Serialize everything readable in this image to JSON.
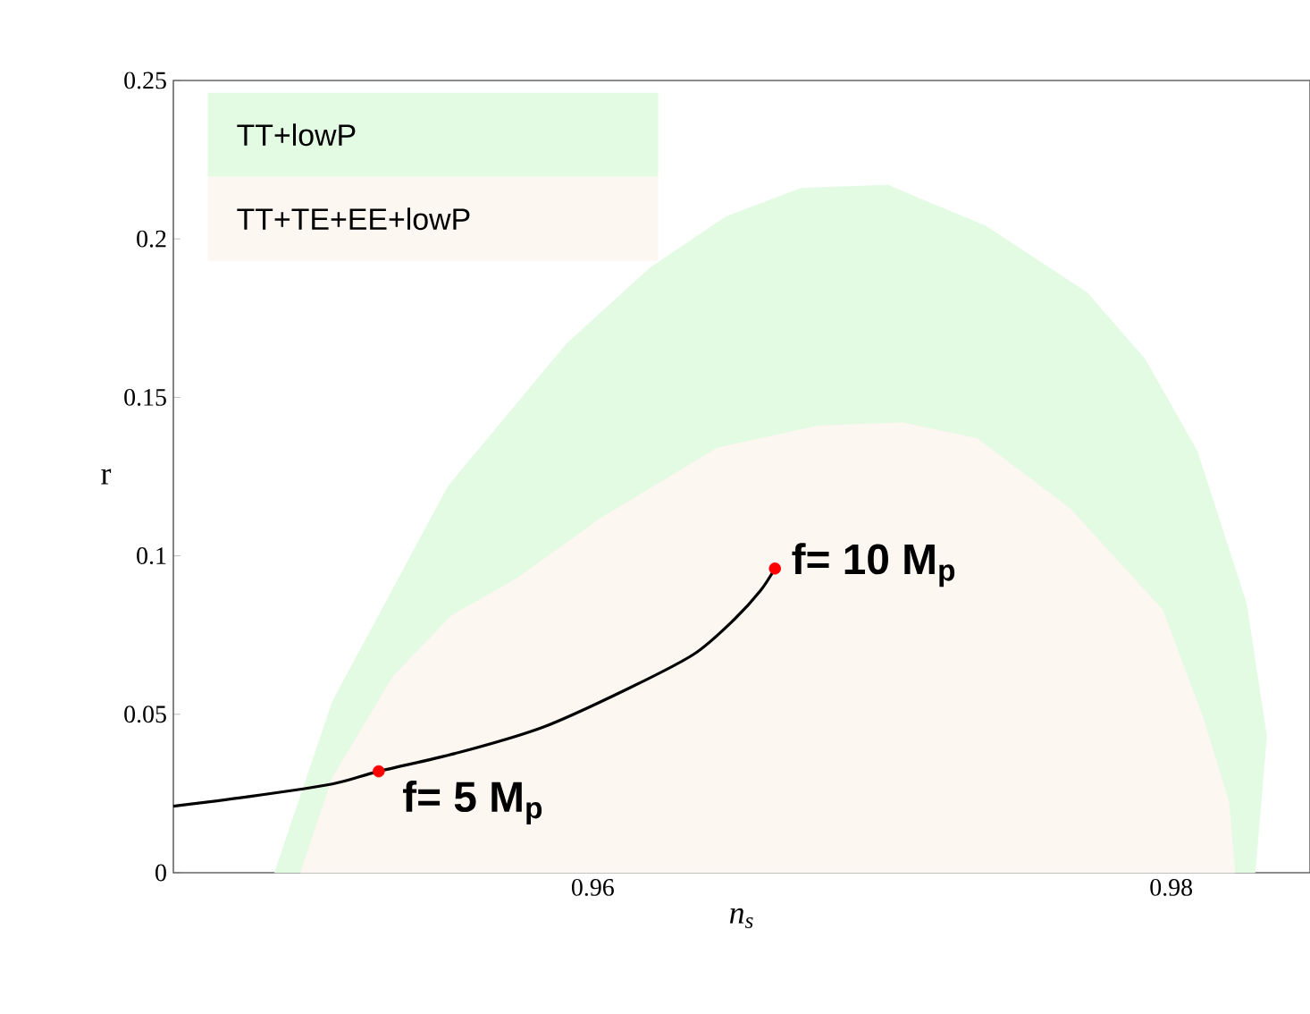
{
  "chart_data": {
    "type": "area",
    "xlabel": "n$_{s}$",
    "ylabel": "r",
    "xlim": [
      0.9455,
      0.9848
    ],
    "ylim": [
      0,
      0.25
    ],
    "xticks": [
      0.96,
      0.98
    ],
    "yticks": [
      0,
      0.05,
      0.1,
      0.15,
      0.2,
      0.25
    ],
    "legend": "top left",
    "series": [
      {
        "name": "TT+lowP",
        "color": "#e3fae3",
        "x": [
          0.949,
          0.951,
          0.955,
          0.9591,
          0.962,
          0.9646,
          0.9672,
          0.9702,
          0.9736,
          0.9771,
          0.9791,
          0.9809,
          0.9826,
          0.9833,
          0.9829
        ],
        "values": [
          0,
          0.054,
          0.122,
          0.167,
          0.191,
          0.207,
          0.216,
          0.217,
          0.204,
          0.183,
          0.162,
          0.133,
          0.085,
          0.043,
          0
        ]
      },
      {
        "name": "TT+TE+EE+lowP",
        "color": "#fdf7f2",
        "x": [
          0.9499,
          0.951,
          0.9531,
          0.9551,
          0.9574,
          0.9603,
          0.9643,
          0.9678,
          0.9707,
          0.9733,
          0.9765,
          0.9797,
          0.9811,
          0.982,
          0.9822
        ],
        "values": [
          0,
          0.03,
          0.062,
          0.081,
          0.093,
          0.112,
          0.134,
          0.141,
          0.142,
          0.137,
          0.115,
          0.083,
          0.049,
          0.022,
          0
        ]
      },
      {
        "type": "line",
        "color": "#000000",
        "x": [
          0.9455,
          0.9481,
          0.951,
          0.9526,
          0.9554,
          0.9583,
          0.9612,
          0.9635,
          0.9649,
          0.9658,
          0.9663
        ],
        "values": [
          0.021,
          0.024,
          0.028,
          0.032,
          0.038,
          0.046,
          0.058,
          0.069,
          0.08,
          0.089,
          0.096
        ]
      },
      {
        "type": "scatter",
        "color": "#ff0000",
        "x": [
          0.9526,
          0.9663
        ],
        "values": [
          0.032,
          0.096
        ]
      }
    ],
    "annotations": [
      {
        "text": "f= 10 M$_{p}$",
        "x": 0.9663,
        "y": 0.096
      },
      {
        "text": "f= 5 M$_{p}$",
        "x": 0.9526,
        "y": 0.032
      }
    ]
  }
}
